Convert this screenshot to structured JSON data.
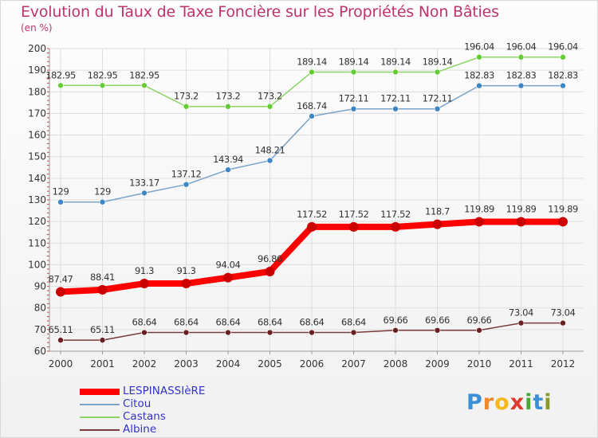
{
  "title": "Evolution du Taux de Taxe Foncière sur les Propriétés Non Bâties",
  "unit_label": "(en %)",
  "logo": {
    "letters": [
      "P",
      "r",
      "o",
      "x",
      "i",
      "t",
      "i"
    ],
    "colors": [
      "#3a8fd8",
      "#f0882a",
      "#f5b81c",
      "#e03a2f",
      "#4aa83a",
      "#3a8fd8",
      "#8a9a2a"
    ]
  },
  "colors": {
    "axis": "#999999",
    "grid": "#dddddd",
    "tick_text": "#333333",
    "minor_tick": "#d04040"
  },
  "chart_data": {
    "type": "line",
    "title": "Evolution du Taux de Taxe Foncière sur les Propriétés Non Bâties",
    "ylabel": "(en %)",
    "xlabel": "",
    "ylim": [
      60,
      200
    ],
    "y_ticks": [
      "60",
      "70",
      "80",
      "90",
      "100",
      "110",
      "120",
      "130",
      "140",
      "150",
      "160",
      "170",
      "180",
      "190",
      "200"
    ],
    "categories": [
      "2000",
      "2001",
      "2002",
      "2003",
      "2004",
      "2005",
      "2006",
      "2007",
      "2008",
      "2009",
      "2010",
      "2011",
      "2012"
    ],
    "grid": true,
    "series": [
      {
        "name": "LESPINASSIèRE",
        "color": "#ff0000",
        "marker_color": "#cc0000",
        "line_width": 8,
        "values": [
          87.47,
          88.41,
          91.3,
          91.3,
          94.04,
          96.86,
          117.52,
          117.52,
          117.52,
          118.7,
          119.89,
          119.89,
          119.89
        ],
        "labels": [
          "87.47",
          "88.41",
          "91.3",
          "91.3",
          "94.04",
          "96.86",
          "117.52",
          "117.52",
          "117.52",
          "118.7",
          "119.89",
          "119.89",
          "119.89"
        ]
      },
      {
        "name": "Citou",
        "color": "#7aa3c9",
        "marker_color": "#3d86c6",
        "line_width": 1.5,
        "values": [
          129,
          129,
          133.17,
          137.12,
          143.94,
          148.21,
          168.74,
          172.11,
          172.11,
          172.11,
          182.83,
          182.83,
          182.83
        ],
        "labels": [
          "129",
          "129",
          "133.17",
          "137.12",
          "143.94",
          "148.21",
          "168.74",
          "172.11",
          "172.11",
          "172.11",
          "182.83",
          "182.83",
          "182.83"
        ]
      },
      {
        "name": "Castans",
        "color": "#8cd466",
        "marker_color": "#66cc33",
        "line_width": 1.5,
        "values": [
          182.95,
          182.95,
          182.95,
          173.2,
          173.2,
          173.2,
          189.14,
          189.14,
          189.14,
          189.14,
          196.04,
          196.04,
          196.04
        ],
        "labels": [
          "182.95",
          "182.95",
          "182.95",
          "173.2",
          "173.2",
          "173.2",
          "189.14",
          "189.14",
          "189.14",
          "189.14",
          "196.04",
          "196.04",
          "196.04"
        ]
      },
      {
        "name": "Albine",
        "color": "#7a3a3a",
        "marker_color": "#6a2020",
        "line_width": 1.5,
        "values": [
          65.11,
          65.11,
          68.64,
          68.64,
          68.64,
          68.64,
          68.64,
          68.64,
          69.66,
          69.66,
          69.66,
          73.04,
          73.04
        ],
        "labels": [
          "65.11",
          "65.11",
          "68.64",
          "68.64",
          "68.64",
          "68.64",
          "68.64",
          "68.64",
          "69.66",
          "69.66",
          "69.66",
          "73.04",
          "73.04"
        ]
      }
    ]
  }
}
